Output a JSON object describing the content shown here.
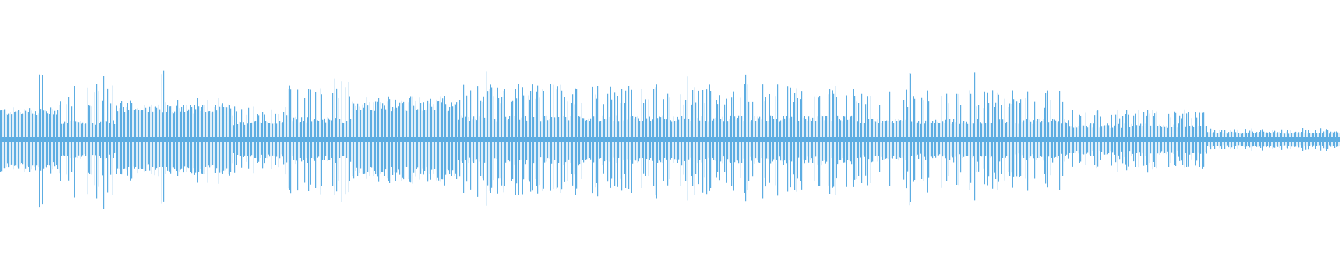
{
  "waveform": {
    "color": "#5dade2",
    "background": "#ffffff",
    "channels": 1
  }
}
